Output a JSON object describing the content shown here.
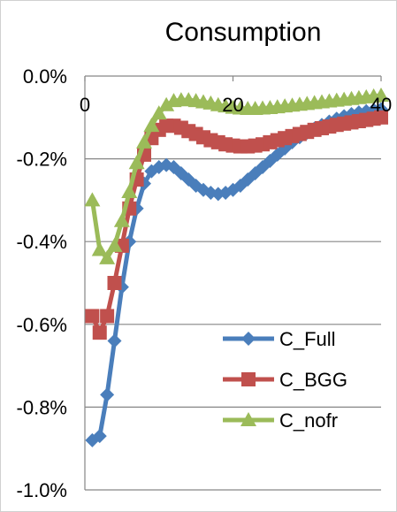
{
  "chart_data": {
    "type": "line",
    "title": "Consumption",
    "xlabel": "",
    "ylabel": "",
    "xlim": [
      0,
      40
    ],
    "ylim": [
      -1.0,
      0.0
    ],
    "x_ticks": [
      {
        "value": 0,
        "label": "0"
      },
      {
        "value": 20,
        "label": "20"
      },
      {
        "value": 40,
        "label": "40"
      }
    ],
    "y_ticks": [
      {
        "value": 0.0,
        "label": "0.0%"
      },
      {
        "value": -0.2,
        "label": "-0.2%"
      },
      {
        "value": -0.4,
        "label": "-0.4%"
      },
      {
        "value": -0.6,
        "label": "-0.6%"
      },
      {
        "value": -0.8,
        "label": "-0.8%"
      },
      {
        "value": -1.0,
        "label": "-1.0%"
      }
    ],
    "grid": "horizontal",
    "x_axis_position": "top",
    "legend_position": "bottom-right",
    "series": [
      {
        "name": "C_Full",
        "color": "#4a7ebb",
        "marker": "diamond",
        "points": [
          [
            1,
            -0.88
          ],
          [
            2,
            -0.87
          ],
          [
            3,
            -0.77
          ],
          [
            4,
            -0.64
          ],
          [
            5,
            -0.51
          ],
          [
            6,
            -0.4
          ],
          [
            7,
            -0.32
          ],
          [
            8,
            -0.26
          ],
          [
            9,
            -0.23
          ],
          [
            10,
            -0.22
          ],
          [
            11,
            -0.215
          ],
          [
            12,
            -0.22
          ],
          [
            13,
            -0.235
          ],
          [
            14,
            -0.25
          ],
          [
            15,
            -0.265
          ],
          [
            16,
            -0.275
          ],
          [
            17,
            -0.282
          ],
          [
            18,
            -0.285
          ],
          [
            19,
            -0.282
          ],
          [
            20,
            -0.275
          ],
          [
            21,
            -0.265
          ],
          [
            22,
            -0.25
          ],
          [
            23,
            -0.235
          ],
          [
            24,
            -0.22
          ],
          [
            25,
            -0.205
          ],
          [
            26,
            -0.19
          ],
          [
            27,
            -0.175
          ],
          [
            28,
            -0.16
          ],
          [
            29,
            -0.148
          ],
          [
            30,
            -0.137
          ],
          [
            31,
            -0.127
          ],
          [
            32,
            -0.118
          ],
          [
            33,
            -0.11
          ],
          [
            34,
            -0.103
          ],
          [
            35,
            -0.097
          ],
          [
            36,
            -0.092
          ],
          [
            37,
            -0.088
          ],
          [
            38,
            -0.085
          ],
          [
            39,
            -0.082
          ],
          [
            40,
            -0.08
          ]
        ]
      },
      {
        "name": "C_BGG",
        "color": "#c0504d",
        "marker": "square",
        "points": [
          [
            1,
            -0.58
          ],
          [
            2,
            -0.62
          ],
          [
            3,
            -0.58
          ],
          [
            4,
            -0.5
          ],
          [
            5,
            -0.41
          ],
          [
            6,
            -0.32
          ],
          [
            7,
            -0.25
          ],
          [
            8,
            -0.19
          ],
          [
            9,
            -0.15
          ],
          [
            10,
            -0.13
          ],
          [
            11,
            -0.12
          ],
          [
            12,
            -0.12
          ],
          [
            13,
            -0.125
          ],
          [
            14,
            -0.133
          ],
          [
            15,
            -0.14
          ],
          [
            16,
            -0.148
          ],
          [
            17,
            -0.155
          ],
          [
            18,
            -0.16
          ],
          [
            19,
            -0.165
          ],
          [
            20,
            -0.168
          ],
          [
            21,
            -0.17
          ],
          [
            22,
            -0.17
          ],
          [
            23,
            -0.168
          ],
          [
            24,
            -0.165
          ],
          [
            25,
            -0.16
          ],
          [
            26,
            -0.155
          ],
          [
            27,
            -0.15
          ],
          [
            28,
            -0.145
          ],
          [
            29,
            -0.14
          ],
          [
            30,
            -0.135
          ],
          [
            31,
            -0.13
          ],
          [
            32,
            -0.126
          ],
          [
            33,
            -0.122
          ],
          [
            34,
            -0.118
          ],
          [
            35,
            -0.115
          ],
          [
            36,
            -0.112
          ],
          [
            37,
            -0.109
          ],
          [
            38,
            -0.106
          ],
          [
            39,
            -0.103
          ],
          [
            40,
            -0.1
          ]
        ]
      },
      {
        "name": "C_nofr",
        "color": "#9bbb59",
        "marker": "triangle",
        "points": [
          [
            1,
            -0.3
          ],
          [
            2,
            -0.42
          ],
          [
            3,
            -0.44
          ],
          [
            4,
            -0.41
          ],
          [
            5,
            -0.35
          ],
          [
            6,
            -0.28
          ],
          [
            7,
            -0.21
          ],
          [
            8,
            -0.16
          ],
          [
            9,
            -0.12
          ],
          [
            10,
            -0.09
          ],
          [
            11,
            -0.07
          ],
          [
            12,
            -0.06
          ],
          [
            13,
            -0.058
          ],
          [
            14,
            -0.058
          ],
          [
            15,
            -0.06
          ],
          [
            16,
            -0.063
          ],
          [
            17,
            -0.066
          ],
          [
            18,
            -0.07
          ],
          [
            19,
            -0.073
          ],
          [
            20,
            -0.076
          ],
          [
            21,
            -0.078
          ],
          [
            22,
            -0.079
          ],
          [
            23,
            -0.079
          ],
          [
            24,
            -0.078
          ],
          [
            25,
            -0.077
          ],
          [
            26,
            -0.075
          ],
          [
            27,
            -0.073
          ],
          [
            28,
            -0.071
          ],
          [
            29,
            -0.069
          ],
          [
            30,
            -0.067
          ],
          [
            31,
            -0.065
          ],
          [
            32,
            -0.063
          ],
          [
            33,
            -0.061
          ],
          [
            34,
            -0.059
          ],
          [
            35,
            -0.057
          ],
          [
            36,
            -0.055
          ],
          [
            37,
            -0.053
          ],
          [
            38,
            -0.051
          ],
          [
            39,
            -0.049
          ],
          [
            40,
            -0.047
          ]
        ]
      }
    ]
  }
}
